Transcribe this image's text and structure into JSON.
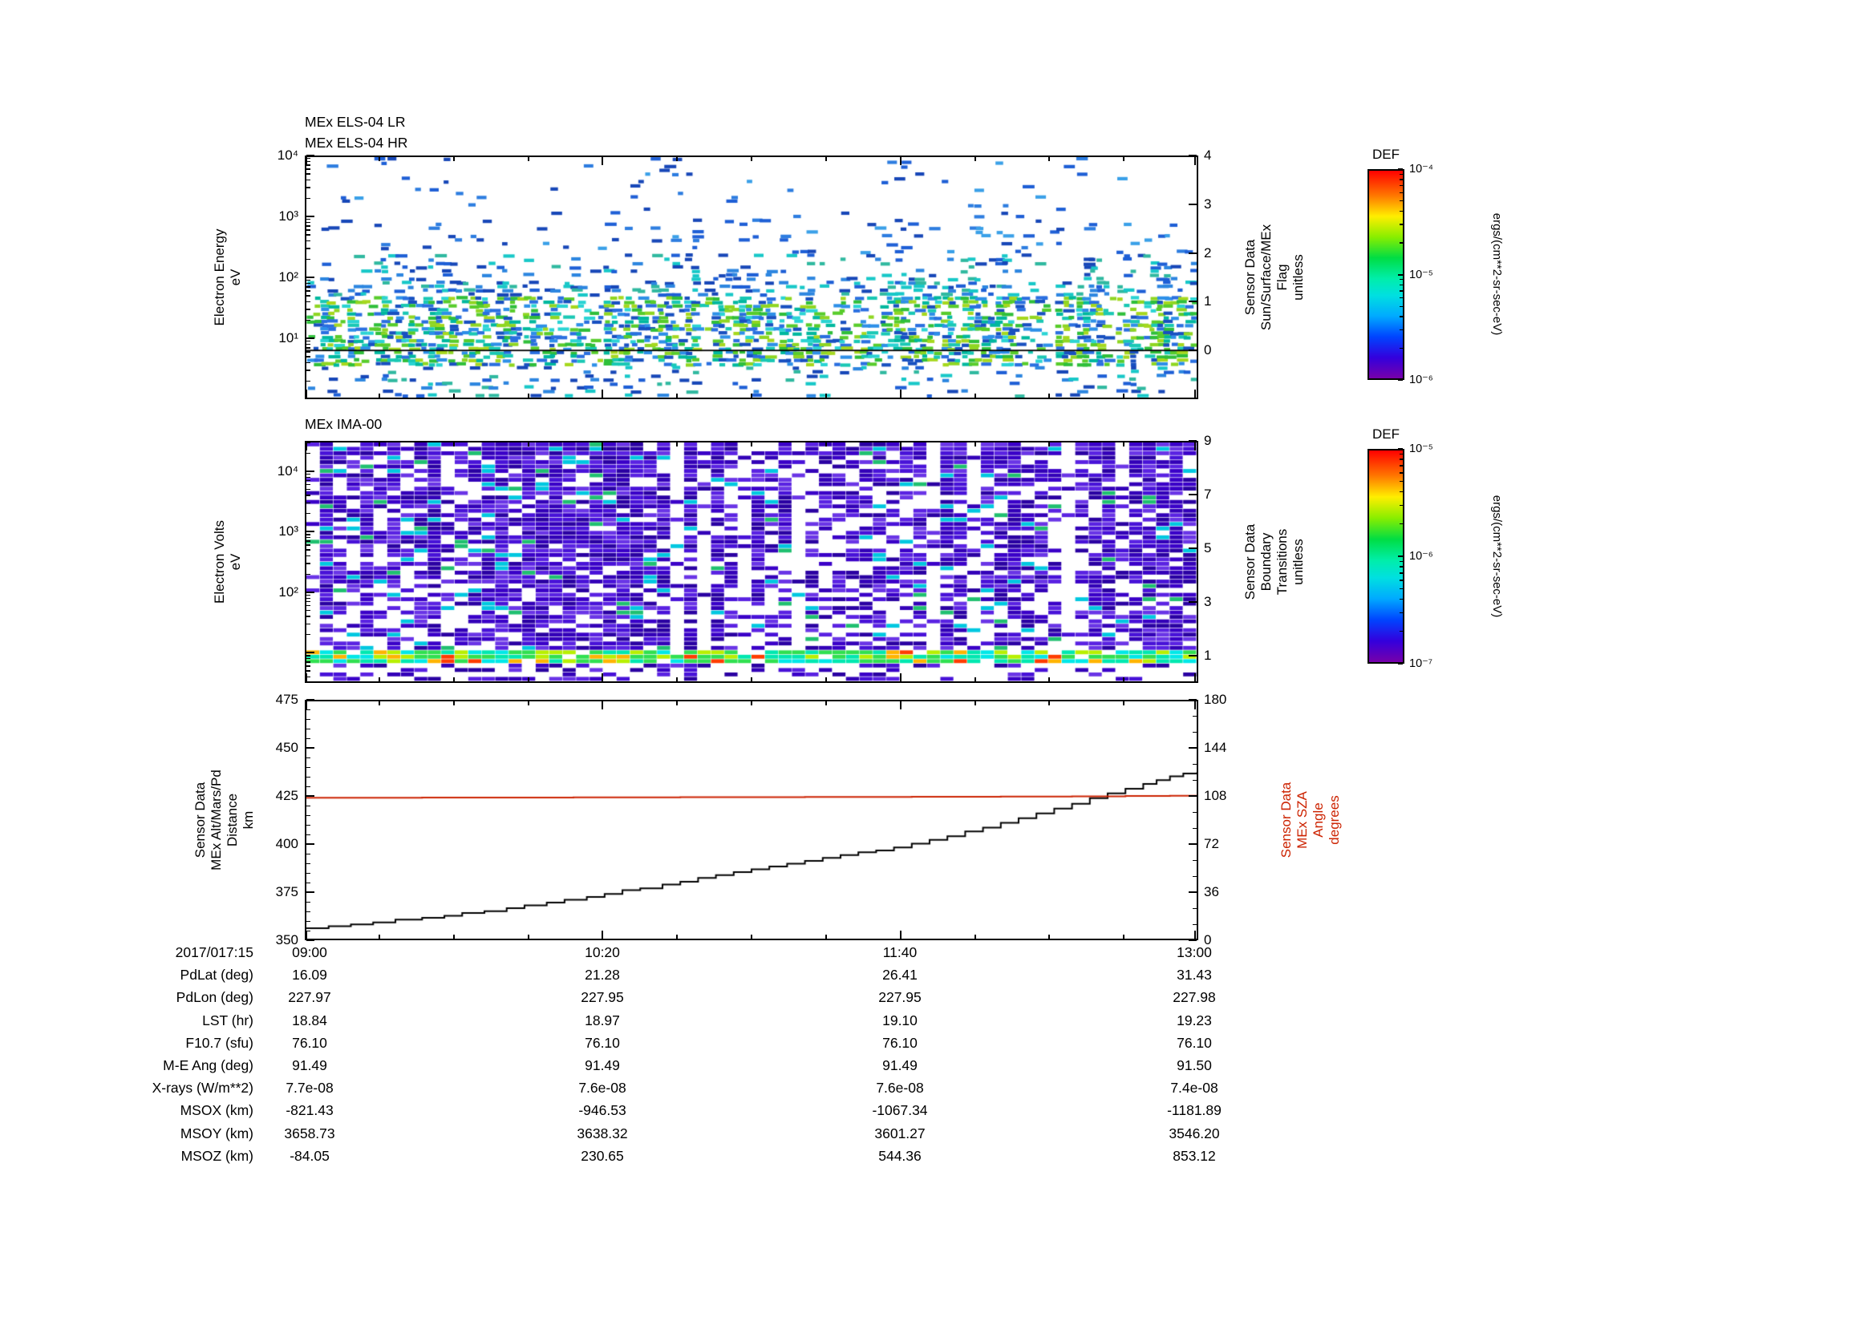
{
  "titles": {
    "els_lr": "MEx ELS-04 LR",
    "els_hr": "MEx ELS-04 HR",
    "ima": "MEx IMA-00"
  },
  "labels": {
    "els_y": "Electron Energy\neV",
    "els_right": "Sensor Data\nSun/Surface/MEx\nFlag\nunitless",
    "ima_y": "Electron Volts\neV",
    "ima_right": "Sensor Data\nBoundary\nTransitions\nunitless",
    "alt_y": "Sensor Data\nMEx Alt/Mars/Pd\nDistance\nkm",
    "sza_right": "Sensor Data\nMEx SZA\nAngle\ndegrees",
    "colorbar_units": "ergs/(cm**2-sr-sec-eV)"
  },
  "axes": {
    "els": {
      "y_ticks": [
        {
          "f": 0,
          "t": "10⁴"
        },
        {
          "f": 0.25,
          "t": "10³"
        },
        {
          "f": 0.5,
          "t": "10²"
        },
        {
          "f": 0.75,
          "t": "10¹"
        }
      ],
      "right_ticks": [
        {
          "f": 0.0,
          "t": "4"
        },
        {
          "f": 0.2,
          "t": "3"
        },
        {
          "f": 0.4,
          "t": "2"
        },
        {
          "f": 0.6,
          "t": "1"
        },
        {
          "f": 0.8,
          "t": "0"
        }
      ],
      "log_range": [
        4,
        0
      ],
      "flag_line_f": 0.8
    },
    "ima": {
      "y_ticks": [
        {
          "f": 0.125,
          "t": "10⁴"
        },
        {
          "f": 0.375,
          "t": "10³"
        },
        {
          "f": 0.625,
          "t": "10²"
        }
      ],
      "extra_y_ticks": [
        0.875
      ],
      "right_ticks": [
        {
          "f": 0,
          "t": "9"
        },
        {
          "f": 0.2222,
          "t": "7"
        },
        {
          "f": 0.4444,
          "t": "5"
        },
        {
          "f": 0.6667,
          "t": "3"
        },
        {
          "f": 0.8889,
          "t": "1"
        }
      ],
      "log_range": [
        4.5,
        0.5
      ]
    },
    "alt": {
      "y_ticks": [
        {
          "f": 0,
          "t": "475"
        },
        {
          "f": 0.2,
          "t": "450"
        },
        {
          "f": 0.4,
          "t": "425"
        },
        {
          "f": 0.6,
          "t": "400"
        },
        {
          "f": 0.8,
          "t": "375"
        },
        {
          "f": 1,
          "t": "350"
        }
      ],
      "right_ticks": [
        {
          "f": 0,
          "t": "180"
        },
        {
          "f": 0.2,
          "t": "144"
        },
        {
          "f": 0.4,
          "t": "108"
        },
        {
          "f": 0.6,
          "t": "72"
        },
        {
          "f": 0.8,
          "t": "36"
        },
        {
          "f": 1,
          "t": "0"
        }
      ]
    },
    "x": {
      "major": [
        0,
        0.33333,
        0.66667,
        1
      ],
      "minor": [
        0.08333,
        0.16667,
        0.25,
        0.41667,
        0.5,
        0.58333,
        0.75,
        0.83333,
        0.91667
      ]
    }
  },
  "colorbars": [
    {
      "title": "DEF",
      "ticks": [
        {
          "f": 0,
          "t": "10⁻⁴"
        },
        {
          "f": 0.5,
          "t": "10⁻⁵"
        },
        {
          "f": 1,
          "t": "10⁻⁶"
        }
      ],
      "log_range": [
        0,
        -2
      ]
    },
    {
      "title": "DEF",
      "ticks": [
        {
          "f": 0,
          "t": "10⁻⁵"
        },
        {
          "f": 0.5,
          "t": "10⁻⁶"
        },
        {
          "f": 1,
          "t": "10⁻⁷"
        }
      ],
      "log_range": [
        0,
        -2
      ]
    }
  ],
  "table": {
    "value_x": [
      386,
      751,
      1122,
      1489
    ],
    "rows": [
      {
        "label": "2017/017:15",
        "values": [
          "09:00",
          "10:20",
          "11:40",
          "13:00"
        ]
      },
      {
        "label": "PdLat (deg)",
        "values": [
          "16.09",
          "21.28",
          "26.41",
          "31.43"
        ]
      },
      {
        "label": "PdLon (deg)",
        "values": [
          "227.97",
          "227.95",
          "227.95",
          "227.98"
        ]
      },
      {
        "label": "LST (hr)",
        "values": [
          "18.84",
          "18.97",
          "19.10",
          "19.23"
        ]
      },
      {
        "label": "F10.7 (sfu)",
        "values": [
          "76.10",
          "76.10",
          "76.10",
          "76.10"
        ]
      },
      {
        "label": "M-E Ang (deg)",
        "values": [
          "91.49",
          "91.49",
          "91.49",
          "91.50"
        ]
      },
      {
        "label": "X-rays (W/m**2)",
        "values": [
          "7.7e-08",
          "7.6e-08",
          "7.6e-08",
          "7.4e-08"
        ]
      },
      {
        "label": "MSOX (km)",
        "values": [
          "-821.43",
          "-946.53",
          "-1067.34",
          "-1181.89"
        ]
      },
      {
        "label": "MSOY (km)",
        "values": [
          "3658.73",
          "3638.32",
          "3601.27",
          "3546.20"
        ]
      },
      {
        "label": "MSOZ (km)",
        "values": [
          "-84.05",
          "230.65",
          "544.36",
          "853.12"
        ]
      }
    ]
  },
  "chart_data": [
    {
      "type": "heatmap",
      "name": "MEx ELS-04 LR/HR electron energy spectrogram",
      "xlabel": "time 2017/017 09:00 to 13:00",
      "ylabel": "Electron Energy eV",
      "y_scale": "log",
      "y_range": [
        1,
        10000
      ],
      "value_units": "ergs/(cm**2-sr-sec-eV)",
      "value_range": [
        1e-06,
        0.0001
      ],
      "overlay_series": {
        "name": "Sensor Data Sun/Surface/MEx Flag",
        "units": "unitless",
        "axis_range": [
          -1,
          4
        ],
        "constant_value": 0,
        "color": "#000000"
      },
      "seed": 1337,
      "bands": [
        {
          "log10E": [
            3.0,
            4.0
          ],
          "density": 0.03
        },
        {
          "log10E": [
            2.4,
            3.0
          ],
          "density": 0.06
        },
        {
          "log10E": [
            2.0,
            2.4
          ],
          "density": 0.16
        },
        {
          "log10E": [
            1.7,
            2.0
          ],
          "density": 0.3
        },
        {
          "log10E": [
            0.55,
            1.7
          ],
          "density": 0.58
        },
        {
          "log10E": [
            0.0,
            0.55
          ],
          "density": 0.12
        }
      ],
      "palette_low": [
        "#2fbf3a",
        "#58cc2b",
        "#8fd622",
        "#19c8b4",
        "#2ad4d4",
        "#00b89e",
        "#2a6fe0",
        "#2d8fe8",
        "#1850c0",
        "#a6d81e"
      ],
      "palette_mid": [
        "#1e5fd6",
        "#2d86e0",
        "#18c8c8",
        "#1747b8",
        "#30b9a0"
      ],
      "palette_hi": [
        "#1e5fd6",
        "#2d7de0",
        "#1747b8",
        "#3aa0e8"
      ]
    },
    {
      "type": "heatmap",
      "name": "MEx IMA-00 ion spectrogram",
      "xlabel": "time 2017/017 09:00 to 13:00",
      "ylabel": "Electron Volts eV",
      "y_scale": "log",
      "y_range": [
        3,
        30000
      ],
      "value_units": "ergs/(cm**2-sr-sec-eV)",
      "value_range": [
        1e-07,
        1e-05
      ],
      "right_axis": {
        "name": "Sensor Data Boundary Transitions",
        "units": "unitless",
        "range": [
          0,
          9
        ]
      },
      "seed": 777,
      "band_bright_frac": [
        0.855,
        0.925
      ],
      "palette_purple": [
        "#3a00c8",
        "#4812d8",
        "#2a00a2",
        "#5a22e2",
        "#3300b8",
        "#6a35e6"
      ],
      "palette_accent": [
        "#00c8e0",
        "#20c070"
      ],
      "palette_band": [
        "#ff3c00",
        "#ffb400",
        "#b8f000",
        "#30e050",
        "#00e8b0",
        "#00e8e8"
      ]
    },
    {
      "type": "line",
      "name": "MEx altitude and solar zenith angle",
      "x_ticks": [
        "09:00",
        "10:20",
        "11:40",
        "13:00"
      ],
      "y_left": {
        "label": "Sensor Data MEx Alt/Mars/Pd Distance km",
        "range": [
          350,
          475
        ]
      },
      "y_right": {
        "label": "Sensor Data MEx SZA Angle degrees",
        "range": [
          0,
          180
        ]
      },
      "series": [
        {
          "name": "MEx Alt/Mars/Pd Distance (km)",
          "axis": "left",
          "color": "#000000",
          "step": true,
          "points": [
            [
              0,
              355.5
            ],
            [
              0.025,
              356.5
            ],
            [
              0.05,
              357.5
            ],
            [
              0.075,
              358.5
            ],
            [
              0.1,
              360
            ],
            [
              0.13,
              361
            ],
            [
              0.155,
              362
            ],
            [
              0.175,
              363.5
            ],
            [
              0.2,
              364.5
            ],
            [
              0.225,
              366
            ],
            [
              0.245,
              367.5
            ],
            [
              0.27,
              369
            ],
            [
              0.29,
              370.5
            ],
            [
              0.315,
              372
            ],
            [
              0.335,
              373.5
            ],
            [
              0.355,
              375.5
            ],
            [
              0.375,
              376.5
            ],
            [
              0.4,
              378.5
            ],
            [
              0.42,
              380
            ],
            [
              0.44,
              382
            ],
            [
              0.46,
              383.5
            ],
            [
              0.48,
              385
            ],
            [
              0.5,
              386.5
            ],
            [
              0.52,
              388
            ],
            [
              0.54,
              389.5
            ],
            [
              0.56,
              391
            ],
            [
              0.58,
              392.5
            ],
            [
              0.6,
              394
            ],
            [
              0.62,
              395.5
            ],
            [
              0.64,
              396.5
            ],
            [
              0.66,
              398
            ],
            [
              0.68,
              400
            ],
            [
              0.7,
              402
            ],
            [
              0.72,
              404
            ],
            [
              0.74,
              406.5
            ],
            [
              0.76,
              408.5
            ],
            [
              0.78,
              411
            ],
            [
              0.8,
              413.5
            ],
            [
              0.82,
              416
            ],
            [
              0.84,
              418.5
            ],
            [
              0.86,
              421
            ],
            [
              0.88,
              424
            ],
            [
              0.9,
              426.5
            ],
            [
              0.92,
              429
            ],
            [
              0.94,
              431.5
            ],
            [
              0.955,
              433.5
            ],
            [
              0.97,
              435.5
            ],
            [
              0.985,
              437
            ],
            [
              1,
              437.5
            ]
          ]
        },
        {
          "name": "MEx SZA Angle (degrees)",
          "axis": "right",
          "color": "#cc2200",
          "step": true,
          "points": [
            [
              0,
              106.9
            ],
            [
              0.13,
              107.1
            ],
            [
              0.3,
              107.2
            ],
            [
              0.42,
              107.4
            ],
            [
              0.56,
              107.5
            ],
            [
              0.68,
              107.6
            ],
            [
              0.78,
              107.8
            ],
            [
              0.86,
              108.0
            ],
            [
              0.92,
              108.2
            ],
            [
              0.97,
              108.4
            ],
            [
              1,
              108.5
            ]
          ]
        }
      ]
    }
  ]
}
